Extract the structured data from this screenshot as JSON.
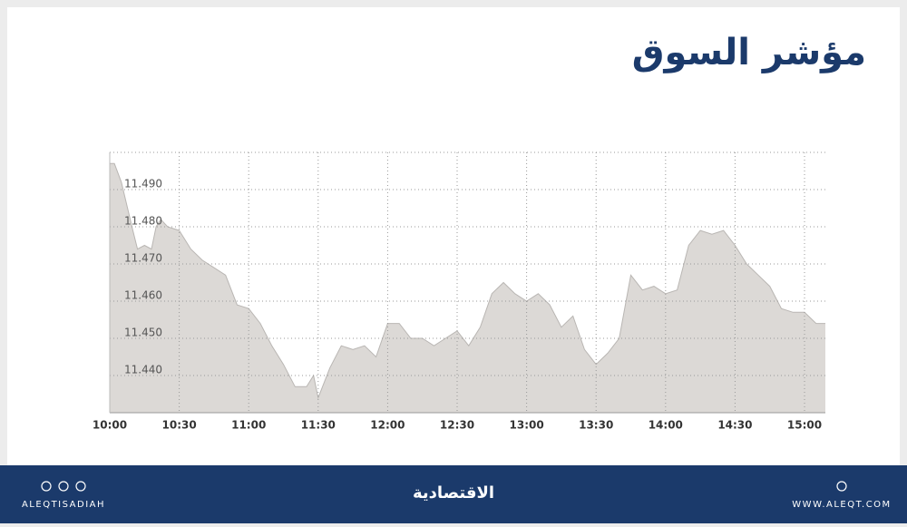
{
  "chart_data": {
    "type": "area",
    "title": "مؤشر السوق",
    "x": [
      "10:00",
      "10:02",
      "10:05",
      "10:10",
      "10:12",
      "10:15",
      "10:18",
      "10:20",
      "10:22",
      "10:25",
      "10:30",
      "10:35",
      "10:40",
      "10:45",
      "10:50",
      "10:55",
      "11:00",
      "11:05",
      "11:10",
      "11:15",
      "11:20",
      "11:25",
      "11:28",
      "11:30",
      "11:35",
      "11:40",
      "11:45",
      "11:50",
      "11:55",
      "12:00",
      "12:05",
      "12:10",
      "12:15",
      "12:20",
      "12:25",
      "12:30",
      "12:35",
      "12:40",
      "12:45",
      "12:50",
      "12:55",
      "13:00",
      "13:05",
      "13:10",
      "13:15",
      "13:20",
      "13:25",
      "13:30",
      "13:35",
      "13:40",
      "13:45",
      "13:50",
      "13:55",
      "14:00",
      "14:05",
      "14:10",
      "14:15",
      "14:20",
      "14:25",
      "14:30",
      "14:35",
      "14:40",
      "14:45",
      "14:50",
      "14:55",
      "15:00",
      "15:05",
      "15:09"
    ],
    "values": [
      11.497,
      11.497,
      11.492,
      11.479,
      11.474,
      11.475,
      11.474,
      11.48,
      11.482,
      11.48,
      11.479,
      11.474,
      11.471,
      11.469,
      11.467,
      11.459,
      11.458,
      11.454,
      11.448,
      11.443,
      11.437,
      11.437,
      11.44,
      11.434,
      11.442,
      11.448,
      11.447,
      11.448,
      11.445,
      11.454,
      11.454,
      11.45,
      11.45,
      11.448,
      11.45,
      11.452,
      11.448,
      11.453,
      11.462,
      11.465,
      11.462,
      11.46,
      11.462,
      11.459,
      11.453,
      11.456,
      11.447,
      11.443,
      11.446,
      11.45,
      11.467,
      11.463,
      11.464,
      11.462,
      11.463,
      11.475,
      11.479,
      11.478,
      11.479,
      11.475,
      11.47,
      11.467,
      11.464,
      11.458,
      11.457,
      11.457,
      11.454,
      11.454
    ],
    "color": "#dcd9d6",
    "line_color": "#b9b6b3",
    "xlim": [
      "10:00",
      "15:09"
    ],
    "xticks": [
      "10:00",
      "10:30",
      "11:00",
      "11:30",
      "12:00",
      "12:30",
      "13:00",
      "13:30",
      "14:00",
      "14:30",
      "15:00"
    ],
    "ylim": [
      11.43,
      11.5
    ],
    "yticks": [
      {
        "value": 11.44,
        "label": "11.440"
      },
      {
        "value": 11.45,
        "label": "11.450"
      },
      {
        "value": 11.46,
        "label": "11.460"
      },
      {
        "value": 11.47,
        "label": "11.470"
      },
      {
        "value": 11.48,
        "label": "11.480"
      },
      {
        "value": 11.49,
        "label": "11.490"
      }
    ],
    "grid": true
  },
  "footer": {
    "handle": "ALEQTISADIAH",
    "logo": "الاقتصادية",
    "website": "WWW.ALEQT.COM"
  }
}
